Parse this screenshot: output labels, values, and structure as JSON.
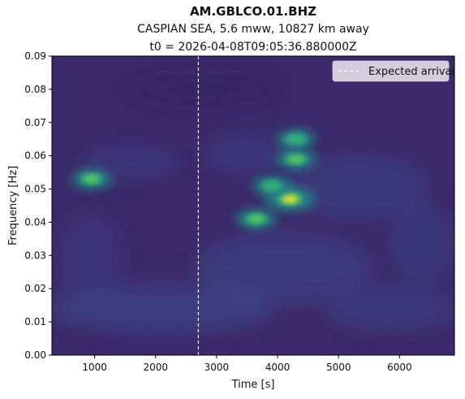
{
  "chart_data": {
    "type": "heatmap",
    "title": "AM.GBLCO.01.BHZ",
    "subtitle_lines": [
      "CASPIAN SEA, 5.6 mww, 10827 km away",
      "t0 = 2026-04-08T09:05:36.880000Z"
    ],
    "xlabel": "Time [s]",
    "ylabel": "Frequency [Hz]",
    "xlim": [
      300,
      6900
    ],
    "ylim": [
      0.0,
      0.09
    ],
    "xticks": [
      1000,
      2000,
      3000,
      4000,
      5000,
      6000
    ],
    "xtick_labels": [
      "1000",
      "2000",
      "3000",
      "4000",
      "5000",
      "6000"
    ],
    "yticks": [
      0.0,
      0.01,
      0.02,
      0.03,
      0.04,
      0.05,
      0.06,
      0.07,
      0.08,
      0.09
    ],
    "ytick_labels": [
      "0.00",
      "0.01",
      "0.02",
      "0.03",
      "0.04",
      "0.05",
      "0.06",
      "0.07",
      "0.08",
      "0.09"
    ],
    "colormap": "viridis",
    "expected_arrival_s": 2700,
    "legend": {
      "label": "Expected arrival",
      "placement": "top-right",
      "line_style": "dashed",
      "line_color": "#ffffff"
    },
    "energy_peaks": [
      {
        "t": 950,
        "f": 0.053,
        "intensity": 0.55
      },
      {
        "t": 3650,
        "f": 0.041,
        "intensity": 0.55
      },
      {
        "t": 4200,
        "f": 0.047,
        "intensity": 1.0
      },
      {
        "t": 4300,
        "f": 0.059,
        "intensity": 0.55
      },
      {
        "t": 4300,
        "f": 0.065,
        "intensity": 0.5
      },
      {
        "t": 3900,
        "f": 0.051,
        "intensity": 0.45
      }
    ]
  }
}
